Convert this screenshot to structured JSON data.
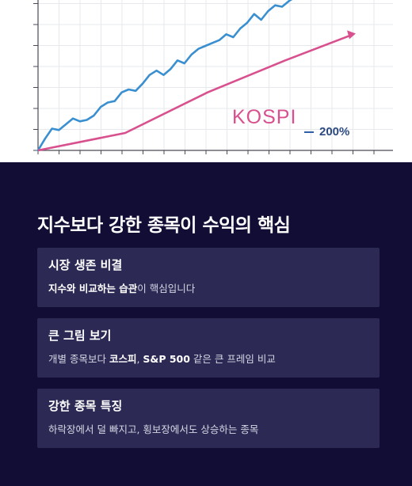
{
  "chart_data": {
    "type": "line",
    "series": [
      {
        "y": [
          0,
          8,
          15,
          14,
          18,
          22,
          20,
          21,
          24,
          30,
          33,
          34,
          40,
          42,
          41,
          46,
          52,
          55,
          52,
          56,
          62,
          60,
          66,
          70,
          72,
          74,
          76,
          80,
          78,
          84,
          88,
          94,
          90,
          96,
          100,
          99,
          103,
          106,
          110,
          114,
          120
        ]
      },
      {
        "y": [
          0,
          12,
          40,
          62,
          80
        ]
      }
    ],
    "grid": true,
    "line_colors": [
      "#3a8fd0",
      "#d8508e"
    ]
  },
  "chart": {
    "label": "KOSPI",
    "legend_value": "200%"
  },
  "section": {
    "heading": "지수보다 강한 종목이 수익의 핵심"
  },
  "cards": [
    {
      "title": "시장 생존 비결",
      "bold1": "지수와 비교하는 습관",
      "text1": "이 핵심입니다"
    },
    {
      "title": "큰 그림 보기",
      "text1": "개별 종목보다 ",
      "bold1": "코스피",
      "text2": ", ",
      "bold2": "S&P 500",
      "text3": " 같은 큰 프레임 비교"
    },
    {
      "title": "강한 종목 특징",
      "text1": "하락장에서 덜 빠지고, 횡보장에서도 상승하는 종목"
    }
  ]
}
